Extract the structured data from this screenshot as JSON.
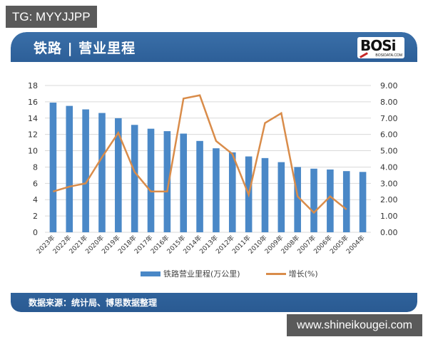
{
  "overlay": {
    "top_left_badge": "TG: MYYJJPP",
    "bottom_right_badge": "www.shineikougei.com"
  },
  "card": {
    "title": "铁路 | 营业里程",
    "logo": {
      "text": "BOSi",
      "subtext": "BOSIDATA.COM"
    },
    "footer": "数据来源：统计局、博思数据整理"
  },
  "legend": {
    "bar_label": "铁路营业里程(万公里)",
    "line_label": "增长(%)"
  },
  "colors": {
    "header_blue": "#2d5f98",
    "bar_blue": "#4a88c7",
    "line_orange": "#d98c4a",
    "grid": "#d9d9d9",
    "badge_gray": "#5a5a5a"
  },
  "chart_data": {
    "type": "bar",
    "title": "铁路 | 营业里程",
    "xlabel": "",
    "ylabel": "",
    "categories": [
      "2023年",
      "2022年",
      "2021年",
      "2020年",
      "2019年",
      "2018年",
      "2017年",
      "2016年",
      "2015年",
      "2014年",
      "2013年",
      "2012年",
      "2011年",
      "2010年",
      "2009年",
      "2008年",
      "2007年",
      "2006年",
      "2005年",
      "2004年"
    ],
    "series": [
      {
        "name": "铁路营业里程(万公里)",
        "type": "bar",
        "axis": "left",
        "values": [
          15.9,
          15.5,
          15.07,
          14.63,
          13.99,
          13.17,
          12.7,
          12.4,
          12.1,
          11.2,
          10.3,
          9.8,
          9.3,
          9.1,
          8.6,
          8.0,
          7.8,
          7.7,
          7.5,
          7.4
        ]
      },
      {
        "name": "增长(%)",
        "type": "line",
        "axis": "right",
        "values": [
          2.5,
          2.8,
          3.0,
          4.6,
          6.1,
          3.7,
          2.5,
          2.5,
          8.2,
          8.4,
          5.6,
          4.8,
          2.3,
          6.7,
          7.3,
          2.2,
          1.2,
          2.2,
          1.4,
          null
        ]
      }
    ],
    "left_axis": {
      "ylim": [
        0,
        18
      ],
      "ticks": [
        "0",
        "2",
        "4",
        "6",
        "8",
        "10",
        "12",
        "14",
        "16",
        "18"
      ]
    },
    "right_axis": {
      "ylim": [
        0,
        9
      ],
      "ticks": [
        "0.00",
        "1.00",
        "2.00",
        "3.00",
        "4.00",
        "5.00",
        "6.00",
        "7.00",
        "8.00",
        "9.00"
      ]
    },
    "grid": true,
    "legend_position": "bottom"
  }
}
